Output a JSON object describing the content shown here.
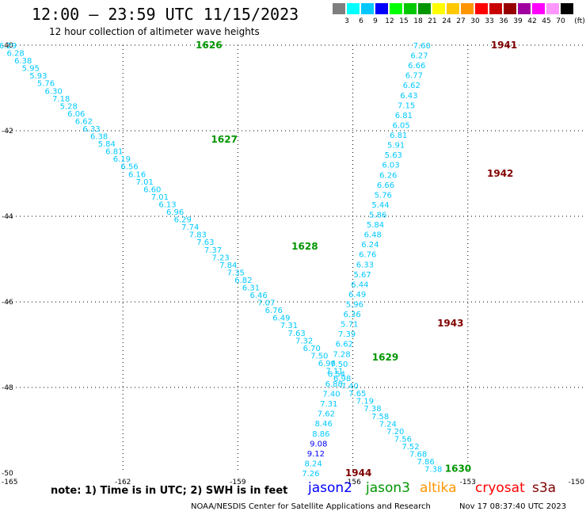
{
  "header": {
    "title": "12:00 – 23:59 UTC 11/15/2023",
    "subtitle": "12 hour collection of altimeter wave heights"
  },
  "legend": {
    "unit": "(ft)",
    "bins": [
      {
        "label": "3",
        "color": "#7f7f7f"
      },
      {
        "label": "6",
        "color": "#00ffff"
      },
      {
        "label": "9",
        "color": "#00c8ff"
      },
      {
        "label": "12",
        "color": "#0000ff"
      },
      {
        "label": "15",
        "color": "#00ff00"
      },
      {
        "label": "18",
        "color": "#00c800"
      },
      {
        "label": "21",
        "color": "#009600"
      },
      {
        "label": "24",
        "color": "#ffff00"
      },
      {
        "label": "27",
        "color": "#ffc800"
      },
      {
        "label": "30",
        "color": "#ff9600"
      },
      {
        "label": "33",
        "color": "#ff0000"
      },
      {
        "label": "36",
        "color": "#c80000"
      },
      {
        "label": "39",
        "color": "#960000"
      },
      {
        "label": "42",
        "color": "#a000a0"
      },
      {
        "label": "45",
        "color": "#ff00ff"
      },
      {
        "label": "70",
        "color": "#ff96ff"
      },
      {
        "label": "",
        "color": "#000000"
      }
    ]
  },
  "map": {
    "lat_labels": [
      "-40",
      "-42",
      "-44",
      "-46",
      "-48",
      "-50"
    ],
    "lon_labels": [
      "-165",
      "-162",
      "-159",
      "-156",
      "-153",
      "-150"
    ],
    "lat_values": [
      -40,
      -42,
      -44,
      -46,
      -48,
      -50
    ],
    "lon_values": [
      -165,
      -162,
      -159,
      -156,
      -153,
      -150
    ],
    "track_colors": {
      "wave": "#00c8ff",
      "wave_high": "#0000ff",
      "time_a": "#009600",
      "time_b": "#800000"
    }
  },
  "tracks": {
    "track_a": {
      "times": [
        {
          "label": "1626",
          "lat": -40.0,
          "lon": -160.1
        },
        {
          "label": "1627",
          "lat": -42.2,
          "lon": -159.7
        },
        {
          "label": "1628",
          "lat": -44.7,
          "lon": -157.6
        },
        {
          "label": "1629",
          "lat": -47.3,
          "lon": -155.5
        },
        {
          "label": "1630",
          "lat": -49.9,
          "lon": -153.6
        }
      ],
      "start": {
        "lat": -40.0,
        "lon": -165.0
      },
      "end": {
        "lat": -49.9,
        "lon": -153.9
      },
      "values": [
        "6.29",
        "6.28",
        "6.38",
        "5.95",
        "5.93",
        "5.76",
        "6.30",
        "7.18",
        "5.28",
        "6.06",
        "6.62",
        "6.33",
        "6.38",
        "5.84",
        "6.81",
        "6.19",
        "6.56",
        "6.16",
        "7.01",
        "6.60",
        "7.01",
        "6.13",
        "6.96",
        "6.29",
        "7.74",
        "7.83",
        "7.63",
        "7.37",
        "7.23",
        "7.84",
        "7.35",
        "6.82",
        "6.31",
        "6.46",
        "7.07",
        "6.76",
        "6.49",
        "7.31",
        "7.63",
        "7.32",
        "6.70",
        "7.50",
        "6.96",
        "7.11",
        "6.98",
        "7.40",
        "7.65",
        "7.19",
        "7.38",
        "7.58",
        "7.24",
        "7.20",
        "7.56",
        "7.52",
        "7.68",
        "7.86",
        "7.38"
      ]
    },
    "track_b": {
      "times": [
        {
          "label": "1941",
          "lat": -40.0,
          "lon": -152.4
        },
        {
          "label": "1942",
          "lat": -43.0,
          "lon": -152.5
        },
        {
          "label": "1943",
          "lat": -46.5,
          "lon": -153.8
        },
        {
          "label": "1944",
          "lat": -50.0,
          "lon": -156.2
        }
      ],
      "start": {
        "lat": -40.0,
        "lon": -154.2
      },
      "end": {
        "lat": -50.0,
        "lon": -157.1
      },
      "values": [
        "7.60",
        "6.27",
        "6.66",
        "6.77",
        "6.62",
        "6.43",
        "7.15",
        "6.81",
        "6.05",
        "6.81",
        "5.91",
        "5.63",
        "6.03",
        "6.26",
        "6.66",
        "5.76",
        "5.44",
        "5.86",
        "5.84",
        "6.48",
        "6.24",
        "6.76",
        "6.33",
        "5.67",
        "6.44",
        "6.49",
        "5.96",
        "6.36",
        "5.71",
        "7.39",
        "6.62",
        "7.28",
        "7.50",
        "6.54",
        "6.88",
        "7.40",
        "7.31",
        "7.62",
        "8.46",
        "8.86",
        "9.08",
        "9.12",
        "8.24",
        "7.26"
      ]
    }
  },
  "note": "note:  1) Time is in UTC; 2) SWH is in feet",
  "satellites": [
    {
      "label": "jason2",
      "color": "#0000ff"
    },
    {
      "label": "jason3",
      "color": "#009600"
    },
    {
      "label": "altika",
      "color": "#ff9600"
    },
    {
      "label": "cryosat",
      "color": "#ff0000"
    },
    {
      "label": "s3a",
      "color": "#800000"
    }
  ],
  "footer": {
    "left": "NOAA/NESDIS Center for Satellite Applications and Research",
    "right": "Nov 17 08:37:40 UTC 2023"
  }
}
